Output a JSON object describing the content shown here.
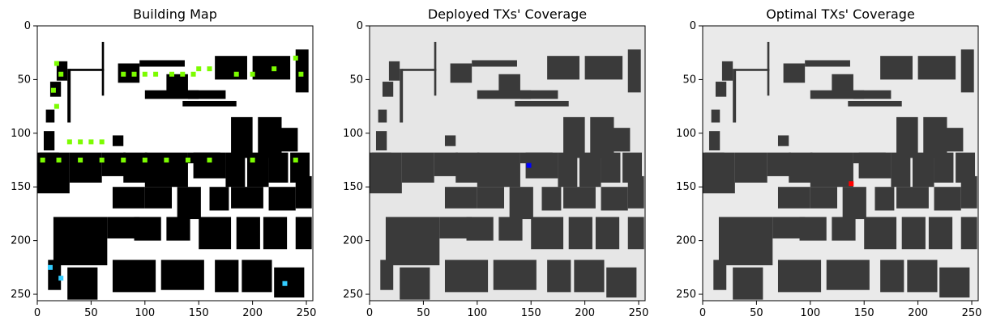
{
  "figure": {
    "panels": [
      {
        "title": "Building Map"
      },
      {
        "title": "Deployed TXs' Coverage"
      },
      {
        "title": "Optimal TXs' Coverage"
      }
    ]
  },
  "chart_data": [
    {
      "type": "heatmap",
      "title": "Building Map",
      "xlabel": "",
      "ylabel": "",
      "xlim": [
        0,
        256
      ],
      "ylim": [
        256,
        0
      ],
      "xticks": [
        0,
        50,
        100,
        150,
        200,
        250
      ],
      "yticks": [
        0,
        50,
        100,
        150,
        200,
        250
      ],
      "colors": {
        "background": "#ffffff",
        "building": "#000000",
        "marker": "#7cfc00",
        "highlight": "#33ccff"
      },
      "marker_positions_approx": [
        [
          18,
          35
        ],
        [
          22,
          45
        ],
        [
          15,
          60
        ],
        [
          18,
          75
        ],
        [
          30,
          108
        ],
        [
          40,
          108
        ],
        [
          50,
          108
        ],
        [
          60,
          108
        ],
        [
          80,
          45
        ],
        [
          90,
          45
        ],
        [
          100,
          45
        ],
        [
          110,
          45
        ],
        [
          125,
          45
        ],
        [
          135,
          45
        ],
        [
          145,
          45
        ],
        [
          150,
          40
        ],
        [
          160,
          40
        ],
        [
          185,
          45
        ],
        [
          200,
          45
        ],
        [
          220,
          40
        ],
        [
          240,
          30
        ],
        [
          245,
          45
        ],
        [
          5,
          125
        ],
        [
          20,
          125
        ],
        [
          40,
          125
        ],
        [
          60,
          125
        ],
        [
          80,
          125
        ],
        [
          100,
          125
        ],
        [
          120,
          125
        ],
        [
          140,
          125
        ],
        [
          160,
          125
        ],
        [
          200,
          125
        ],
        [
          240,
          125
        ]
      ],
      "highlight_positions_approx": [
        [
          12,
          225
        ],
        [
          22,
          235
        ],
        [
          230,
          240
        ]
      ]
    },
    {
      "type": "heatmap",
      "title": "Deployed TXs' Coverage",
      "xlabel": "",
      "ylabel": "",
      "xlim": [
        0,
        256
      ],
      "ylim": [
        256,
        0
      ],
      "xticks": [
        0,
        50,
        100,
        150,
        200,
        250
      ],
      "yticks": [
        0,
        50,
        100,
        150,
        200,
        250
      ],
      "colors": {
        "background": "#e6e6e6",
        "building": "#3a3a3a",
        "tx": "#0000ff"
      },
      "tx_positions": [
        [
          148,
          130
        ]
      ]
    },
    {
      "type": "heatmap",
      "title": "Optimal TXs' Coverage",
      "xlabel": "",
      "ylabel": "",
      "xlim": [
        0,
        256
      ],
      "ylim": [
        256,
        0
      ],
      "xticks": [
        0,
        50,
        100,
        150,
        200,
        250
      ],
      "yticks": [
        0,
        50,
        100,
        150,
        200,
        250
      ],
      "colors": {
        "background": "#eaeaea",
        "building": "#3a3a3a",
        "tx": "#ff0000"
      },
      "tx_positions": [
        [
          138,
          147
        ]
      ]
    }
  ]
}
